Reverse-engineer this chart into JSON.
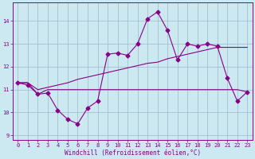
{
  "x": [
    0,
    1,
    2,
    3,
    4,
    5,
    6,
    7,
    8,
    9,
    10,
    11,
    12,
    13,
    14,
    15,
    16,
    17,
    18,
    19,
    20,
    21,
    22,
    23
  ],
  "line1_y": [
    11.3,
    11.2,
    10.8,
    10.85,
    10.1,
    9.7,
    9.5,
    10.2,
    10.5,
    12.55,
    12.6,
    12.5,
    13.0,
    14.1,
    14.4,
    13.6,
    12.3,
    13.0,
    12.9,
    13.0,
    12.9,
    11.5,
    10.5,
    10.9
  ],
  "line2_y": [
    11.3,
    11.3,
    10.8,
    11.0,
    11.0,
    11.0,
    11.0,
    11.0,
    11.0,
    11.0,
    11.0,
    11.0,
    11.0,
    11.0,
    11.0,
    11.0,
    11.0,
    11.0,
    11.0,
    11.0,
    11.0,
    11.0,
    11.0,
    10.9
  ],
  "line3_y": [
    11.3,
    11.3,
    11.0,
    11.1,
    11.2,
    11.3,
    11.45,
    11.55,
    11.65,
    11.75,
    11.85,
    11.95,
    12.05,
    12.15,
    12.2,
    12.35,
    12.45,
    12.55,
    12.65,
    12.75,
    12.85,
    12.85,
    12.85,
    12.85
  ],
  "line_color": "#880088",
  "bg_color": "#cce8f0",
  "grid_color": "#99bbcc",
  "ylim": [
    8.8,
    14.8
  ],
  "yticks": [
    9,
    10,
    11,
    12,
    13,
    14
  ],
  "xlim": [
    -0.5,
    23.5
  ],
  "xticks": [
    0,
    1,
    2,
    3,
    4,
    5,
    6,
    7,
    8,
    9,
    10,
    11,
    12,
    13,
    14,
    15,
    16,
    17,
    18,
    19,
    20,
    21,
    22,
    23
  ],
  "xlabel": "Windchill (Refroidissement éolien,°C)"
}
